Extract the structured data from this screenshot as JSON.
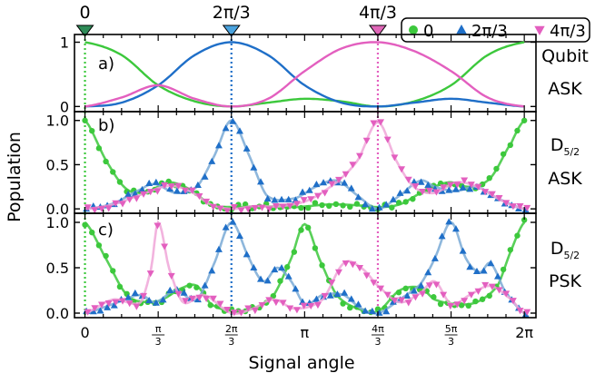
{
  "figure": {
    "ylabel": "Population",
    "xlabel": "Signal angle",
    "top_markers": [
      {
        "label": "0",
        "x": 0,
        "color": "#2e8b57"
      },
      {
        "label": "2π/3",
        "x": 2.0944,
        "color": "#4aa3df"
      },
      {
        "label": "4π/3",
        "x": 4.1888,
        "color": "#e066b8"
      }
    ],
    "legend": {
      "placement": "top-right",
      "entries": [
        {
          "label": "0",
          "color": "#3cc83c",
          "marker": "circle"
        },
        {
          "label": "2π/3",
          "color": "#1f6fc8",
          "marker": "triangle-up"
        },
        {
          "label": "4π/3",
          "color": "#e35fbf",
          "marker": "triangle-down"
        }
      ]
    },
    "colors": {
      "s0": "#3cc83c",
      "s1": "#1f6fc8",
      "s2": "#e35fbf",
      "s1_fit": "#7aaad6",
      "s2_fit": "#f0a6d8"
    }
  },
  "chart_data": [
    {
      "type": "line",
      "panel_label": "a)",
      "side_label": [
        "Qubit",
        "ASK"
      ],
      "xlim": [
        -0.15,
        6.45
      ],
      "ylim": [
        -0.08,
        1.12
      ],
      "yticks": [
        {
          "v": 0,
          "label": "0"
        },
        {
          "v": 1,
          "label": "1"
        }
      ],
      "series": [
        {
          "name": "0",
          "x": [
            0,
            0.524,
            1.047,
            1.571,
            2.094,
            2.618,
            3.142,
            3.665,
            4.189,
            4.712,
            5.236,
            5.76,
            6.283
          ],
          "y": [
            1.0,
            0.8,
            0.33,
            0.08,
            0.0,
            0.06,
            0.12,
            0.08,
            0.0,
            0.08,
            0.33,
            0.8,
            1.0
          ]
        },
        {
          "name": "2π/3",
          "x": [
            0,
            0.524,
            1.047,
            1.571,
            2.094,
            2.618,
            3.142,
            3.665,
            4.189,
            4.712,
            5.236,
            5.76,
            6.283
          ],
          "y": [
            0.0,
            0.06,
            0.33,
            0.8,
            1.0,
            0.8,
            0.33,
            0.06,
            0.0,
            0.06,
            0.12,
            0.06,
            0.0
          ]
        },
        {
          "name": "4π/3",
          "x": [
            0,
            0.524,
            1.047,
            1.571,
            2.094,
            2.618,
            3.142,
            3.665,
            4.189,
            4.712,
            5.236,
            5.76,
            6.283
          ],
          "y": [
            0.0,
            0.14,
            0.33,
            0.12,
            0.0,
            0.12,
            0.55,
            0.9,
            1.0,
            0.86,
            0.55,
            0.14,
            0.0
          ]
        }
      ]
    },
    {
      "type": "scatter",
      "panel_label": "b)",
      "side_label": [
        "D5/2",
        "ASK"
      ],
      "xlim": [
        -0.15,
        6.45
      ],
      "ylim": [
        -0.05,
        1.1
      ],
      "yticks": [
        {
          "v": 0,
          "label": "0.0"
        },
        {
          "v": 0.5,
          "label": "0.5"
        },
        {
          "v": 1,
          "label": "1.0"
        }
      ],
      "series": [
        {
          "name": "0",
          "fit": [
            [
              0,
              1.0
            ],
            [
              0.3,
              0.55
            ],
            [
              0.6,
              0.22
            ],
            [
              0.9,
              0.2
            ],
            [
              1.2,
              0.3
            ],
            [
              1.5,
              0.22
            ],
            [
              1.8,
              0.05
            ],
            [
              2.094,
              0.02
            ],
            [
              2.5,
              0.03
            ],
            [
              3.0,
              0.02
            ],
            [
              3.5,
              0.05
            ],
            [
              3.9,
              0.04
            ],
            [
              4.189,
              0.02
            ],
            [
              4.5,
              0.05
            ],
            [
              4.8,
              0.18
            ],
            [
              5.2,
              0.3
            ],
            [
              5.5,
              0.25
            ],
            [
              5.8,
              0.35
            ],
            [
              6.1,
              0.75
            ],
            [
              6.283,
              1.0
            ]
          ]
        },
        {
          "name": "2π/3",
          "fit": [
            [
              0,
              0.0
            ],
            [
              0.4,
              0.06
            ],
            [
              0.8,
              0.22
            ],
            [
              1.0,
              0.28
            ],
            [
              1.3,
              0.18
            ],
            [
              1.6,
              0.25
            ],
            [
              1.85,
              0.6
            ],
            [
              2.094,
              1.0
            ],
            [
              2.35,
              0.6
            ],
            [
              2.6,
              0.15
            ],
            [
              3.0,
              0.12
            ],
            [
              3.3,
              0.25
            ],
            [
              3.6,
              0.32
            ],
            [
              3.9,
              0.15
            ],
            [
              4.189,
              0.0
            ],
            [
              4.5,
              0.15
            ],
            [
              4.8,
              0.32
            ],
            [
              5.0,
              0.25
            ],
            [
              5.3,
              0.2
            ],
            [
              5.6,
              0.25
            ],
            [
              5.9,
              0.12
            ],
            [
              6.283,
              0.0
            ]
          ]
        },
        {
          "name": "4π/3",
          "fit": [
            [
              0,
              0.0
            ],
            [
              0.4,
              0.05
            ],
            [
              0.8,
              0.16
            ],
            [
              1.2,
              0.26
            ],
            [
              1.5,
              0.2
            ],
            [
              1.8,
              0.05
            ],
            [
              2.094,
              0.0
            ],
            [
              2.4,
              0.03
            ],
            [
              2.8,
              0.03
            ],
            [
              3.2,
              0.1
            ],
            [
              3.6,
              0.3
            ],
            [
              3.9,
              0.55
            ],
            [
              4.189,
              0.98
            ],
            [
              4.45,
              0.55
            ],
            [
              4.7,
              0.25
            ],
            [
              5.0,
              0.18
            ],
            [
              5.3,
              0.3
            ],
            [
              5.6,
              0.25
            ],
            [
              6.0,
              0.08
            ],
            [
              6.283,
              0.0
            ]
          ]
        }
      ]
    },
    {
      "type": "scatter",
      "panel_label": "c)",
      "side_label": [
        "D5/2",
        "PSK"
      ],
      "xlim": [
        -0.15,
        6.45
      ],
      "ylim": [
        -0.05,
        1.1
      ],
      "yticks": [
        {
          "v": 0,
          "label": "0.0"
        },
        {
          "v": 0.5,
          "label": "0.5"
        },
        {
          "v": 1,
          "label": "1.0"
        }
      ],
      "xticks": [
        {
          "v": 0,
          "label": "0"
        },
        {
          "v": 1.0472,
          "num": "π",
          "den": "3"
        },
        {
          "v": 2.0944,
          "num": "2π",
          "den": "3"
        },
        {
          "v": 3.1416,
          "label": "π"
        },
        {
          "v": 4.1888,
          "num": "4π",
          "den": "3"
        },
        {
          "v": 5.236,
          "num": "5π",
          "den": "3"
        },
        {
          "v": 6.2832,
          "label": "2π"
        }
      ],
      "series": [
        {
          "name": "0",
          "fit": [
            [
              0,
              1.0
            ],
            [
              0.3,
              0.6
            ],
            [
              0.6,
              0.2
            ],
            [
              0.9,
              0.12
            ],
            [
              1.1,
              0.15
            ],
            [
              1.4,
              0.28
            ],
            [
              1.6,
              0.3
            ],
            [
              1.8,
              0.1
            ],
            [
              2.094,
              0.02
            ],
            [
              2.4,
              0.05
            ],
            [
              2.7,
              0.2
            ],
            [
              2.95,
              0.6
            ],
            [
              3.142,
              0.98
            ],
            [
              3.35,
              0.6
            ],
            [
              3.6,
              0.2
            ],
            [
              3.9,
              0.05
            ],
            [
              4.189,
              0.02
            ],
            [
              4.5,
              0.25
            ],
            [
              4.8,
              0.28
            ],
            [
              5.0,
              0.15
            ],
            [
              5.3,
              0.1
            ],
            [
              5.6,
              0.12
            ],
            [
              5.9,
              0.3
            ],
            [
              6.1,
              0.7
            ],
            [
              6.283,
              1.0
            ]
          ]
        },
        {
          "name": "2π/3",
          "fit": [
            [
              0,
              0.0
            ],
            [
              0.4,
              0.1
            ],
            [
              0.8,
              0.2
            ],
            [
              1.0,
              0.12
            ],
            [
              1.3,
              0.25
            ],
            [
              1.6,
              0.15
            ],
            [
              1.85,
              0.55
            ],
            [
              2.094,
              1.0
            ],
            [
              2.35,
              0.6
            ],
            [
              2.55,
              0.35
            ],
            [
              2.75,
              0.5
            ],
            [
              2.95,
              0.35
            ],
            [
              3.142,
              0.1
            ],
            [
              3.4,
              0.2
            ],
            [
              3.7,
              0.2
            ],
            [
              3.95,
              0.05
            ],
            [
              4.189,
              0.0
            ],
            [
              4.5,
              0.15
            ],
            [
              4.8,
              0.32
            ],
            [
              5.0,
              0.6
            ],
            [
              5.236,
              1.0
            ],
            [
              5.45,
              0.6
            ],
            [
              5.65,
              0.45
            ],
            [
              5.8,
              0.55
            ],
            [
              6.0,
              0.25
            ],
            [
              6.283,
              0.0
            ]
          ]
        },
        {
          "name": "4π/3",
          "fit": [
            [
              0,
              0.0
            ],
            [
              0.4,
              0.15
            ],
            [
              0.8,
              0.12
            ],
            [
              0.95,
              0.5
            ],
            [
              1.047,
              1.0
            ],
            [
              1.2,
              0.5
            ],
            [
              1.4,
              0.12
            ],
            [
              1.7,
              0.2
            ],
            [
              2.094,
              0.0
            ],
            [
              2.4,
              0.05
            ],
            [
              2.7,
              0.15
            ],
            [
              3.0,
              0.05
            ],
            [
              3.4,
              0.15
            ],
            [
              3.7,
              0.55
            ],
            [
              3.95,
              0.5
            ],
            [
              4.189,
              0.3
            ],
            [
              4.5,
              0.12
            ],
            [
              4.8,
              0.22
            ],
            [
              5.0,
              0.35
            ],
            [
              5.236,
              0.1
            ],
            [
              5.5,
              0.2
            ],
            [
              5.8,
              0.3
            ],
            [
              6.1,
              0.15
            ],
            [
              6.283,
              0.0
            ]
          ]
        }
      ]
    }
  ]
}
